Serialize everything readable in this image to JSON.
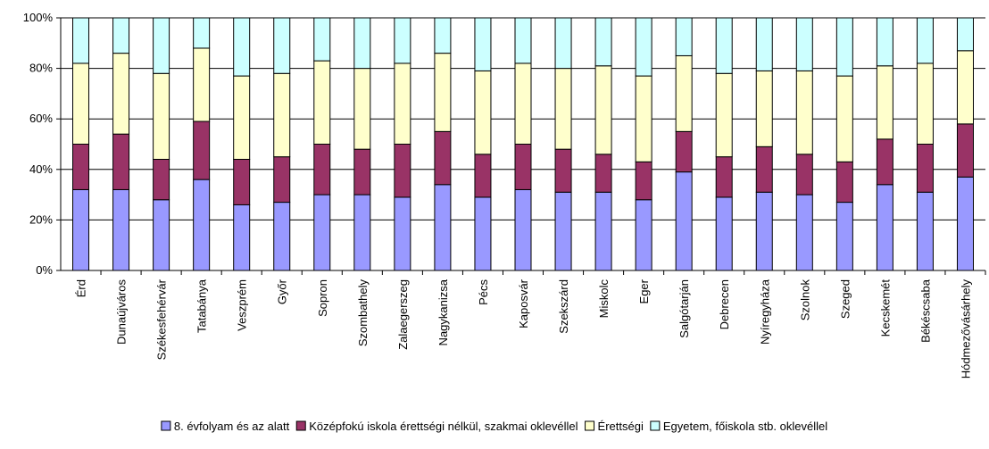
{
  "chart_data": {
    "type": "bar",
    "stacked": "percent",
    "ylim": [
      0,
      100
    ],
    "yticks": [
      "0%",
      "20%",
      "40%",
      "60%",
      "80%",
      "100%"
    ],
    "grid": true,
    "legend_position": "bottom",
    "categories": [
      "Érd",
      "Dunaújváros",
      "Székesfehérvár",
      "Tatabánya",
      "Veszprém",
      "Győr",
      "Sopron",
      "Szombathely",
      "Zalaegerszeg",
      "Nagykanizsa",
      "Pécs",
      "Kaposvár",
      "Szekszárd",
      "Miskolc",
      "Eger",
      "Salgótarján",
      "Debrecen",
      "Nyíregyháza",
      "Szolnok",
      "Szeged",
      "Kecskemét",
      "Békéscsaba",
      "Hódmezővásárhely"
    ],
    "series": [
      {
        "name": "8. évfolyam és az alatt",
        "color": "#9999ff",
        "values": [
          32,
          32,
          28,
          36,
          26,
          27,
          30,
          30,
          29,
          34,
          29,
          32,
          31,
          31,
          28,
          39,
          29,
          31,
          30,
          27,
          34,
          31,
          37
        ]
      },
      {
        "name": "Középfokú iskola érettségi nélkül, szakmai oklevéllel",
        "color": "#993366",
        "values": [
          18,
          22,
          16,
          23,
          18,
          18,
          20,
          18,
          21,
          21,
          17,
          18,
          17,
          15,
          15,
          16,
          16,
          18,
          16,
          16,
          18,
          19,
          21
        ]
      },
      {
        "name": "Érettségi",
        "color": "#ffffcc",
        "values": [
          32,
          32,
          34,
          29,
          33,
          33,
          33,
          32,
          32,
          31,
          33,
          32,
          32,
          35,
          34,
          30,
          33,
          30,
          33,
          34,
          29,
          32,
          29
        ]
      },
      {
        "name": "Egyetem, főiskola stb. oklevéllel",
        "color": "#ccffff",
        "values": [
          18,
          14,
          22,
          12,
          23,
          22,
          17,
          20,
          18,
          14,
          21,
          18,
          20,
          19,
          23,
          15,
          22,
          21,
          21,
          23,
          19,
          18,
          13
        ]
      }
    ]
  }
}
